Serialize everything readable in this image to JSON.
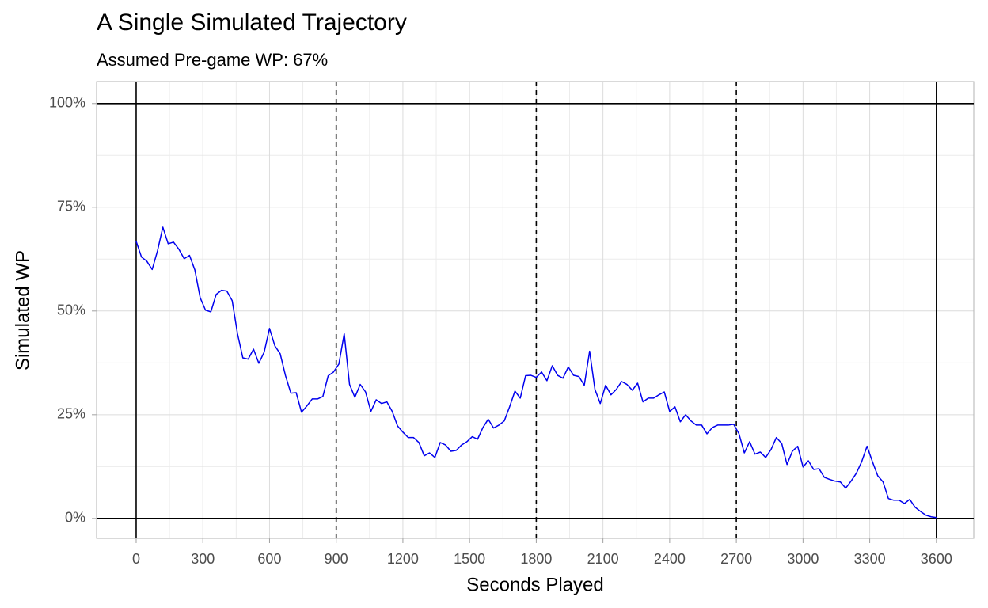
{
  "chart_data": {
    "type": "line",
    "title": "A Single Simulated Trajectory",
    "subtitle": "Assumed Pre-game WP: 67%",
    "x_label": "Seconds Played",
    "y_label": "Simulated WP",
    "color": "#0000ee",
    "x": [
      0,
      24,
      48,
      72,
      96,
      120,
      144,
      168,
      192,
      216,
      240,
      264,
      288,
      312,
      336,
      360,
      384,
      408,
      432,
      456,
      480,
      504,
      528,
      552,
      576,
      600,
      624,
      648,
      672,
      696,
      720,
      744,
      768,
      792,
      816,
      840,
      864,
      888,
      912,
      936,
      960,
      984,
      1008,
      1032,
      1056,
      1080,
      1104,
      1128,
      1152,
      1176,
      1200,
      1224,
      1248,
      1272,
      1296,
      1320,
      1344,
      1368,
      1392,
      1416,
      1440,
      1464,
      1488,
      1512,
      1536,
      1560,
      1584,
      1608,
      1632,
      1656,
      1680,
      1704,
      1728,
      1752,
      1776,
      1800,
      1824,
      1848,
      1872,
      1896,
      1920,
      1944,
      1968,
      1992,
      2016,
      2040,
      2064,
      2088,
      2112,
      2136,
      2160,
      2184,
      2208,
      2232,
      2256,
      2280,
      2304,
      2328,
      2352,
      2376,
      2400,
      2424,
      2448,
      2472,
      2496,
      2520,
      2544,
      2568,
      2592,
      2616,
      2640,
      2664,
      2688,
      2712,
      2736,
      2760,
      2784,
      2808,
      2832,
      2856,
      2880,
      2904,
      2928,
      2952,
      2976,
      3000,
      3024,
      3048,
      3072,
      3096,
      3120,
      3144,
      3168,
      3192,
      3216,
      3240,
      3264,
      3288,
      3312,
      3336,
      3360,
      3384,
      3408,
      3432,
      3456,
      3480,
      3504,
      3528,
      3552,
      3576,
      3600
    ],
    "values": [
      66.8,
      63,
      62,
      60,
      64.5,
      70.2,
      66.2,
      66.6,
      64.9,
      62.6,
      63.4,
      59.9,
      53.2,
      50.2,
      49.8,
      54,
      55,
      54.8,
      52.5,
      44.5,
      38.7,
      38.4,
      40.8,
      37.4,
      40.1,
      45.8,
      41.6,
      39.7,
      34.4,
      30.2,
      30.3,
      25.6,
      27.1,
      28.8,
      28.8,
      29.4,
      34.4,
      35.3,
      37.2,
      44.5,
      32.3,
      29.2,
      32.3,
      30.5,
      25.8,
      28.6,
      27.7,
      28.1,
      25.8,
      22.3,
      20.8,
      19.5,
      19.5,
      18.3,
      15.1,
      15.8,
      14.7,
      18.3,
      17.7,
      16.2,
      16.4,
      17.7,
      18.5,
      19.7,
      19.1,
      21.9,
      23.9,
      21.8,
      22.5,
      23.5,
      26.9,
      30.7,
      29,
      34.4,
      34.5,
      34,
      35.3,
      33.2,
      36.8,
      34.5,
      33.8,
      36.5,
      34.5,
      34.2,
      32.1,
      40.3,
      31.1,
      27.7,
      32.1,
      29.8,
      31.1,
      33,
      32.3,
      30.9,
      32.6,
      28.1,
      29,
      29,
      29.8,
      30.5,
      25.8,
      26.9,
      23.3,
      25,
      23.5,
      22.5,
      22.5,
      20.4,
      21.9,
      22.5,
      22.5,
      22.5,
      22.7,
      20.4,
      15.8,
      18.5,
      15.5,
      16,
      14.7,
      16.6,
      19.5,
      18.1,
      13,
      16.2,
      17.4,
      12.4,
      13.9,
      11.8,
      12,
      9.9,
      9.4,
      9,
      8.8,
      7.3,
      9,
      10.9,
      13.7,
      17.4,
      13.7,
      10.3,
      8.8,
      4.8,
      4.4,
      4.4,
      3.6,
      4.6,
      2.7,
      1.7,
      0.8,
      0.4,
      0.2
    ],
    "xlim": [
      -178,
      3768
    ],
    "ylim": [
      -4.8,
      105.3
    ],
    "xticks": [
      0,
      300,
      600,
      900,
      1200,
      1500,
      1800,
      2100,
      2400,
      2700,
      3000,
      3300,
      3600
    ],
    "yticks": [
      {
        "value": 0,
        "label": "0%"
      },
      {
        "value": 25,
        "label": "25%"
      },
      {
        "value": 50,
        "label": "50%"
      },
      {
        "value": 75,
        "label": "75%"
      },
      {
        "value": 100,
        "label": "100%"
      }
    ],
    "grid": true,
    "minor_grid": true,
    "reference_lines": {
      "x_solid": [
        0,
        3600
      ],
      "x_dashed": [
        900,
        1800,
        2700
      ],
      "y_solid": [
        0,
        100
      ]
    }
  }
}
